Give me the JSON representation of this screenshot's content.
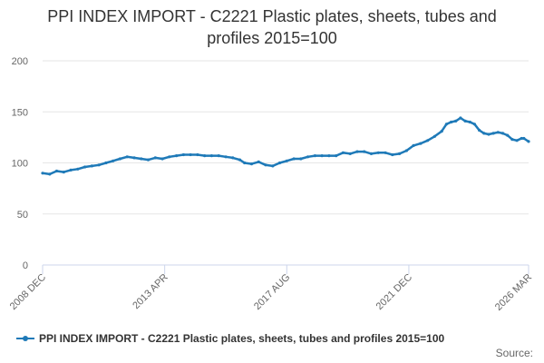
{
  "chart_data": {
    "type": "line",
    "title_lines": [
      "PPI INDEX IMPORT - C2221 Plastic plates, sheets, tubes and",
      "profiles 2015=100"
    ],
    "xlabel": "",
    "ylabel": "",
    "ylim": [
      0,
      200
    ],
    "yticks": [
      0,
      50,
      100,
      150,
      200
    ],
    "xticks": [
      "2008 DEC",
      "2013 APR",
      "2017 AUG",
      "2021 DEC",
      "2026 MAR"
    ],
    "xtick_positions": [
      0,
      52,
      104,
      156,
      207
    ],
    "x_span": 207,
    "grid": true,
    "legend_position": "bottom-left",
    "series": [
      {
        "name": "PPI INDEX IMPORT - C2221 Plastic plates, sheets, tubes and profiles 2015=100",
        "color": "#1f7ab8",
        "points": [
          [
            0,
            90
          ],
          [
            3,
            89
          ],
          [
            6,
            92
          ],
          [
            9,
            91
          ],
          [
            12,
            93
          ],
          [
            15,
            94
          ],
          [
            18,
            96
          ],
          [
            21,
            97
          ],
          [
            24,
            98
          ],
          [
            27,
            100
          ],
          [
            30,
            102
          ],
          [
            33,
            104
          ],
          [
            36,
            106
          ],
          [
            39,
            105
          ],
          [
            42,
            104
          ],
          [
            45,
            103
          ],
          [
            48,
            105
          ],
          [
            51,
            104
          ],
          [
            54,
            106
          ],
          [
            57,
            107
          ],
          [
            60,
            108
          ],
          [
            63,
            108
          ],
          [
            66,
            108
          ],
          [
            69,
            107
          ],
          [
            72,
            107
          ],
          [
            75,
            107
          ],
          [
            78,
            106
          ],
          [
            81,
            105
          ],
          [
            84,
            103
          ],
          [
            86,
            100
          ],
          [
            89,
            99
          ],
          [
            92,
            101
          ],
          [
            95,
            98
          ],
          [
            98,
            97
          ],
          [
            101,
            100
          ],
          [
            104,
            102
          ],
          [
            107,
            104
          ],
          [
            110,
            104
          ],
          [
            113,
            106
          ],
          [
            116,
            107
          ],
          [
            119,
            107
          ],
          [
            122,
            107
          ],
          [
            125,
            107
          ],
          [
            128,
            110
          ],
          [
            131,
            109
          ],
          [
            134,
            111
          ],
          [
            137,
            111
          ],
          [
            140,
            109
          ],
          [
            143,
            110
          ],
          [
            146,
            110
          ],
          [
            149,
            108
          ],
          [
            152,
            109
          ],
          [
            155,
            112
          ],
          [
            158,
            117
          ],
          [
            161,
            119
          ],
          [
            164,
            122
          ],
          [
            167,
            126
          ],
          [
            170,
            131
          ],
          [
            172,
            138
          ],
          [
            174,
            140
          ],
          [
            176,
            141
          ],
          [
            178,
            144
          ],
          [
            180,
            141
          ],
          [
            182,
            140
          ],
          [
            184,
            138
          ],
          [
            186,
            132
          ],
          [
            188,
            129
          ],
          [
            190,
            128
          ],
          [
            192,
            129
          ],
          [
            194,
            130
          ],
          [
            196,
            129
          ],
          [
            198,
            127
          ],
          [
            200,
            123
          ],
          [
            202,
            122
          ],
          [
            204,
            124
          ],
          [
            205,
            124
          ],
          [
            207,
            121
          ]
        ]
      }
    ]
  },
  "source_label": "Source:"
}
